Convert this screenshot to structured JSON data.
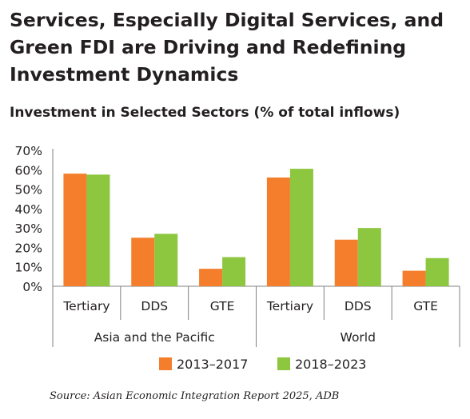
{
  "title_lines": [
    "Services, Especially Digital Services, and",
    "Green FDI are Driving and Redefining",
    "Investment Dynamics"
  ],
  "source": "Source: Asian Economic Integration Report 2025, ADB",
  "colors": {
    "series1": "#f47e2b",
    "series2": "#8dc63f",
    "axis": "#808080",
    "text": "#231f20"
  },
  "chart_data": {
    "type": "bar",
    "title": "Investment in Selected Sectors (% of total inflows)",
    "xlabel": "",
    "ylabel": "",
    "ylim": [
      0,
      70
    ],
    "yticks": [
      "0%",
      "10%",
      "20%",
      "30%",
      "40%",
      "50%",
      "60%",
      "70%"
    ],
    "groups": [
      {
        "name": "Asia and the Pacific",
        "categories": [
          "Tertiary",
          "DDS",
          "GTE"
        ]
      },
      {
        "name": "World",
        "categories": [
          "Tertiary",
          "DDS",
          "GTE"
        ]
      }
    ],
    "series": [
      {
        "name": "2013–2017",
        "values": [
          58,
          25,
          9,
          56,
          24,
          8
        ]
      },
      {
        "name": "2018–2023",
        "values": [
          57.5,
          27,
          15,
          60.5,
          30,
          14.5
        ]
      }
    ],
    "legend": "bottom",
    "grid": false
  }
}
